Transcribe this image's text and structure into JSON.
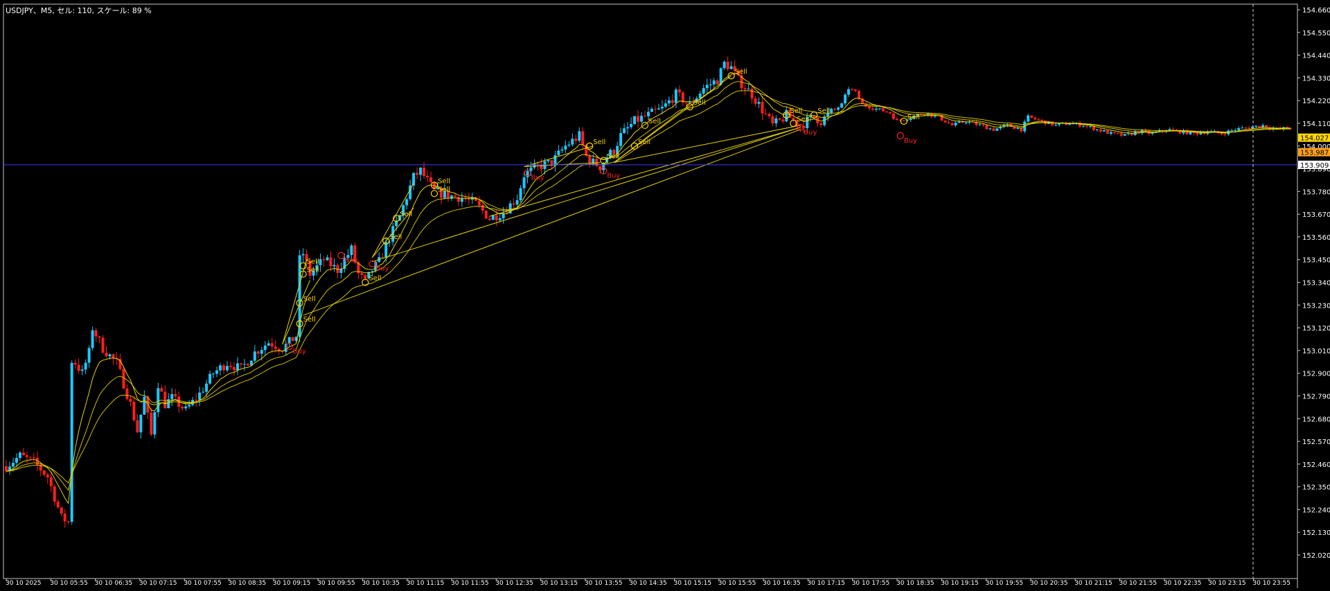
{
  "window": {
    "title": "USDJPY、M5, セル: 110, スケール: 89 %"
  },
  "colors": {
    "background": "#000000",
    "frame": "#c8c8c8",
    "bull": "#1ec8ff",
    "bear": "#ff1e1e",
    "ma": "#e6d200",
    "signal": "#ffd700",
    "buy_text": "#ff2020",
    "hline": "#3c3cff",
    "price_tag_high": "#ffd700",
    "price_tag_low": "#ff9f1a"
  },
  "chart_data": {
    "type": "candlestick",
    "symbol": "USDJPY",
    "timeframe": "M5",
    "price_ticks": [
      "154.660",
      "154.550",
      "154.440",
      "154.330",
      "154.220",
      "154.110",
      "154.000",
      "153.890",
      "153.780",
      "153.670",
      "153.560",
      "153.450",
      "153.340",
      "153.230",
      "153.120",
      "153.010",
      "152.900",
      "152.790",
      "152.680",
      "152.570",
      "152.460",
      "152.350",
      "152.240",
      "152.130",
      "152.020"
    ],
    "ylim": [
      151.93,
      154.72
    ],
    "time_labels": [
      "30 10 2025",
      "30 10 05:55",
      "30 10 06:35",
      "30 10 07:15",
      "30 10 07:55",
      "30 10 08:35",
      "30 10 09:15",
      "30 10 09:55",
      "30 10 10:35",
      "30 10 11:15",
      "30 10 11:55",
      "30 10 12:35",
      "30 10 13:15",
      "30 10 13:55",
      "30 10 14:35",
      "30 10 15:15",
      "30 10 15:55",
      "30 10 16:35",
      "30 10 17:15",
      "30 10 17:55",
      "30 10 18:35",
      "30 10 19:15",
      "30 10 19:55",
      "30 10 20:35",
      "30 10 21:15",
      "30 10 21:55",
      "30 10 22:35",
      "30 10 23:15",
      "30 10 23:55"
    ],
    "horizontal_line": {
      "price": "153.909"
    },
    "price_tags": [
      {
        "label": "154.027",
        "price": 154.027,
        "style": "high"
      },
      {
        "label": "153.987",
        "price": 153.987,
        "style": "low"
      }
    ],
    "price_path": [
      [
        0,
        152.45
      ],
      [
        4,
        152.5
      ],
      [
        8,
        152.47
      ],
      [
        12,
        152.4
      ],
      [
        16,
        152.2
      ],
      [
        18,
        152.18
      ],
      [
        19,
        152.6
      ],
      [
        20,
        152.95
      ],
      [
        22,
        152.9
      ],
      [
        24,
        153.0
      ],
      [
        25,
        153.12
      ],
      [
        28,
        153.02
      ],
      [
        32,
        152.95
      ],
      [
        36,
        152.75
      ],
      [
        38,
        152.62
      ],
      [
        40,
        152.78
      ],
      [
        42,
        152.6
      ],
      [
        44,
        152.85
      ],
      [
        46,
        152.75
      ],
      [
        48,
        152.78
      ],
      [
        52,
        152.72
      ],
      [
        56,
        152.8
      ],
      [
        60,
        152.9
      ],
      [
        64,
        152.95
      ],
      [
        68,
        152.92
      ],
      [
        72,
        153.0
      ],
      [
        76,
        153.05
      ],
      [
        80,
        153.02
      ],
      [
        84,
        153.08
      ],
      [
        85,
        153.45
      ],
      [
        86,
        153.48
      ],
      [
        88,
        153.38
      ],
      [
        92,
        153.45
      ],
      [
        96,
        153.4
      ],
      [
        100,
        153.5
      ],
      [
        102,
        153.38
      ],
      [
        104,
        153.34
      ],
      [
        106,
        153.4
      ],
      [
        108,
        153.44
      ],
      [
        110,
        153.52
      ],
      [
        114,
        153.66
      ],
      [
        118,
        153.85
      ],
      [
        120,
        153.88
      ],
      [
        124,
        153.78
      ],
      [
        128,
        153.76
      ],
      [
        132,
        153.75
      ],
      [
        136,
        153.72
      ],
      [
        140,
        153.65
      ],
      [
        144,
        153.68
      ],
      [
        148,
        153.75
      ],
      [
        150,
        153.86
      ],
      [
        154,
        153.9
      ],
      [
        158,
        153.92
      ],
      [
        162,
        154.0
      ],
      [
        166,
        154.05
      ],
      [
        168,
        153.95
      ],
      [
        170,
        153.92
      ],
      [
        172,
        153.9
      ],
      [
        174,
        153.95
      ],
      [
        176,
        153.98
      ],
      [
        178,
        154.05
      ],
      [
        182,
        154.12
      ],
      [
        186,
        154.15
      ],
      [
        190,
        154.18
      ],
      [
        194,
        154.25
      ],
      [
        198,
        154.2
      ],
      [
        202,
        154.28
      ],
      [
        206,
        154.32
      ],
      [
        208,
        154.4
      ],
      [
        210,
        154.38
      ],
      [
        212,
        154.32
      ],
      [
        216,
        154.25
      ],
      [
        218,
        154.2
      ],
      [
        222,
        154.1
      ],
      [
        224,
        154.12
      ],
      [
        226,
        154.15
      ],
      [
        230,
        154.1
      ],
      [
        234,
        154.14
      ],
      [
        236,
        154.12
      ],
      [
        238,
        154.15
      ],
      [
        242,
        154.2
      ],
      [
        244,
        154.28
      ],
      [
        246,
        154.26
      ],
      [
        248,
        154.2
      ],
      [
        252,
        154.18
      ],
      [
        256,
        154.16
      ],
      [
        258,
        154.12
      ],
      [
        262,
        154.14
      ],
      [
        266,
        154.16
      ],
      [
        270,
        154.14
      ],
      [
        274,
        154.1
      ],
      [
        278,
        154.12
      ],
      [
        282,
        154.1
      ],
      [
        286,
        154.08
      ],
      [
        290,
        154.1
      ],
      [
        294,
        154.08
      ],
      [
        296,
        154.14
      ],
      [
        300,
        154.12
      ],
      [
        304,
        154.1
      ],
      [
        308,
        154.11
      ],
      [
        312,
        154.1
      ],
      [
        316,
        154.08
      ],
      [
        320,
        154.06
      ],
      [
        324,
        154.05
      ],
      [
        328,
        154.07
      ],
      [
        332,
        154.06
      ],
      [
        336,
        154.08
      ],
      [
        340,
        154.07
      ],
      [
        344,
        154.06
      ],
      [
        348,
        154.07
      ],
      [
        352,
        154.06
      ],
      [
        356,
        154.08
      ],
      [
        360,
        154.09
      ],
      [
        364,
        154.1
      ],
      [
        368,
        154.08
      ],
      [
        372,
        154.09
      ]
    ],
    "signals": [
      {
        "label": "Sell",
        "t": 86,
        "price": 153.42
      },
      {
        "label": "Sell",
        "t": 86,
        "price": 153.38
      },
      {
        "label": "Sell",
        "t": 85,
        "price": 153.24
      },
      {
        "label": "Sell",
        "t": 85,
        "price": 153.14
      },
      {
        "label": "Buy",
        "t": 82,
        "price": 153.03
      },
      {
        "label": "Buy",
        "t": 97,
        "price": 153.47
      },
      {
        "label": "Buy",
        "t": 106,
        "price": 153.43
      },
      {
        "label": "Sell",
        "t": 104,
        "price": 153.34
      },
      {
        "label": "Sell",
        "t": 110,
        "price": 153.54
      },
      {
        "label": "Sell",
        "t": 113,
        "price": 153.65
      },
      {
        "label": "Sell",
        "t": 124,
        "price": 153.81
      },
      {
        "label": "Sell",
        "t": 124,
        "price": 153.77
      },
      {
        "label": "Buy",
        "t": 151,
        "price": 153.87
      },
      {
        "label": "Sell",
        "t": 169,
        "price": 154.0
      },
      {
        "label": "Sell",
        "t": 173,
        "price": 153.93
      },
      {
        "label": "Buy",
        "t": 173,
        "price": 153.88
      },
      {
        "label": "Sell",
        "t": 182,
        "price": 154.0
      },
      {
        "label": "Sell",
        "t": 185,
        "price": 154.1
      },
      {
        "label": "Sell",
        "t": 198,
        "price": 154.19
      },
      {
        "label": "Sell",
        "t": 210,
        "price": 154.34
      },
      {
        "label": "Sell",
        "t": 226,
        "price": 154.15
      },
      {
        "label": "Sell",
        "t": 228,
        "price": 154.11
      },
      {
        "label": "Buy",
        "t": 230,
        "price": 154.09
      },
      {
        "label": "Sell",
        "t": 234,
        "price": 154.15
      },
      {
        "label": "Sell",
        "t": 260,
        "price": 154.12
      },
      {
        "label": "Buy",
        "t": 259,
        "price": 154.05
      }
    ],
    "trend_lines": [
      {
        "t1": 80,
        "p1": 153.04,
        "t2": 87,
        "p2": 153.45
      },
      {
        "t1": 80,
        "p1": 153.04,
        "t2": 88,
        "p2": 153.35
      },
      {
        "t1": 106,
        "p1": 153.46,
        "t2": 118,
        "p2": 153.82
      },
      {
        "t1": 106,
        "p1": 153.46,
        "t2": 118,
        "p2": 153.7
      },
      {
        "t1": 150,
        "p1": 153.9,
        "t2": 170,
        "p2": 154.0
      },
      {
        "t1": 150,
        "p1": 153.9,
        "t2": 172,
        "p2": 153.92
      },
      {
        "t1": 176,
        "p1": 153.92,
        "t2": 210,
        "p2": 154.34
      },
      {
        "t1": 176,
        "p1": 153.92,
        "t2": 198,
        "p2": 154.2
      },
      {
        "t1": 86,
        "p1": 153.18,
        "t2": 230,
        "p2": 154.08
      },
      {
        "t1": 106,
        "p1": 153.44,
        "t2": 230,
        "p2": 154.09
      },
      {
        "t1": 140,
        "p1": 153.66,
        "t2": 230,
        "p2": 154.09
      },
      {
        "t1": 176,
        "p1": 153.92,
        "t2": 230,
        "p2": 154.1
      }
    ]
  }
}
